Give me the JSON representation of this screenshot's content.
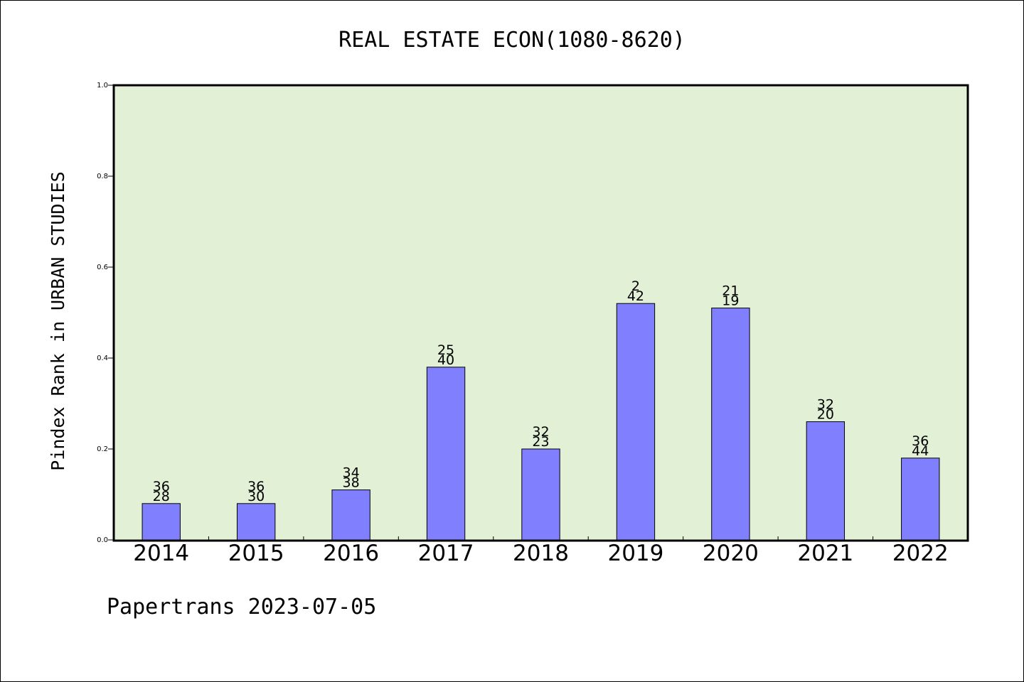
{
  "chart_data": {
    "type": "bar",
    "title": "REAL ESTATE ECON(1080-8620)",
    "ylabel": "Pindex Rank in URBAN STUDIES",
    "xlabel": "",
    "footer": "Papertrans 2023-07-05",
    "ylim": [
      0,
      1.0
    ],
    "yticks": [
      "0.0",
      "0.2",
      "0.4",
      "0.6",
      "0.8",
      "1.0"
    ],
    "grid": false,
    "categories": [
      "2014",
      "2015",
      "2016",
      "2017",
      "2018",
      "2019",
      "2020",
      "2021",
      "2022"
    ],
    "values": [
      0.08,
      0.08,
      0.11,
      0.38,
      0.2,
      0.52,
      0.51,
      0.26,
      0.18
    ],
    "labels_top": [
      "36",
      "36",
      "34",
      "25",
      "32",
      "2",
      "21",
      "32",
      "36"
    ],
    "labels_bottom": [
      "28",
      "30",
      "38",
      "40",
      "23",
      "42",
      "19",
      "20",
      "44"
    ],
    "colors": {
      "bar_fill": "#8080ff",
      "plot_background": "#e2f0d6",
      "axis": "#000000"
    }
  }
}
